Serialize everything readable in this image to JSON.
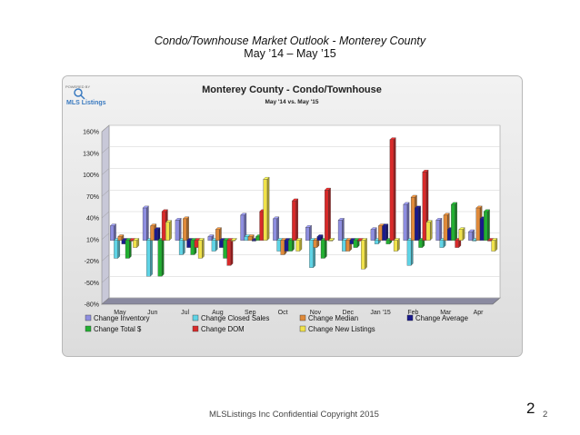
{
  "slide": {
    "title": "Condo/Townhouse Market Outlook - Monterey County",
    "subtitle": "May ’14 – May ’15",
    "footer": "MLSListings Inc Confidential Copyright 2015",
    "page_number_large": "2",
    "page_number_small": "2"
  },
  "logo": {
    "label": "MLS Listings",
    "tagline": "POWERED BY"
  },
  "colors": {
    "plot_bg": "#ffffff",
    "frame_bg": "#e9e9e9",
    "wall": "#c8c8d8",
    "floor": "#8a8aa0",
    "title_color": "#222222"
  },
  "chart_data": {
    "type": "bar",
    "title": "Monterey County - Condo/Townhouse",
    "subtitle": "May '14 vs. May '15",
    "xlabel": "",
    "ylabel": "",
    "ylim": [
      -80,
      160
    ],
    "yticks": [
      "160%",
      "130%",
      "100%",
      "70%",
      "40%",
      "10%",
      "-20%",
      "-50%",
      "-80%"
    ],
    "ytick_values": [
      160,
      130,
      100,
      70,
      40,
      10,
      -20,
      -50,
      -80
    ],
    "grid": true,
    "legend_position": "bottom",
    "categories": [
      "May",
      "Jun",
      "Jul",
      "Aug",
      "Sep",
      "Oct",
      "Nov",
      "Dec",
      "Jan '15",
      "Feb",
      "Mar",
      "Apr"
    ],
    "series": [
      {
        "name": "Change Inventory",
        "color": "#8e8ee0",
        "values": [
          20,
          45,
          28,
          5,
          35,
          30,
          18,
          28,
          15,
          50,
          28,
          12
        ]
      },
      {
        "name": "Change Closed Sales",
        "color": "#5fd4e6",
        "values": [
          -25,
          -50,
          -20,
          -15,
          5,
          -15,
          -38,
          -15,
          -5,
          -35,
          -10,
          0
        ]
      },
      {
        "name": "Change Median",
        "color": "#e08a3a",
        "values": [
          5,
          20,
          30,
          15,
          5,
          -20,
          -10,
          -15,
          20,
          60,
          35,
          45
        ]
      },
      {
        "name": "Change Average",
        "color": "#1a1a8c",
        "values": [
          -5,
          15,
          -10,
          -10,
          0,
          -15,
          5,
          -5,
          20,
          45,
          15,
          30
        ]
      },
      {
        "name": "Change Total $",
        "color": "#22b032",
        "values": [
          -25,
          -50,
          -20,
          -25,
          5,
          -15,
          -25,
          -10,
          -5,
          -10,
          50,
          40
        ]
      },
      {
        "name": "Change DOM",
        "color": "#d82a2a",
        "values": [
          0,
          40,
          -10,
          -35,
          40,
          55,
          70,
          0,
          140,
          95,
          -10,
          0
        ]
      },
      {
        "name": "Change New Listings",
        "color": "#f0e24a",
        "values": [
          -10,
          25,
          -25,
          0,
          85,
          -15,
          0,
          -40,
          -15,
          25,
          15,
          -15
        ]
      }
    ]
  }
}
